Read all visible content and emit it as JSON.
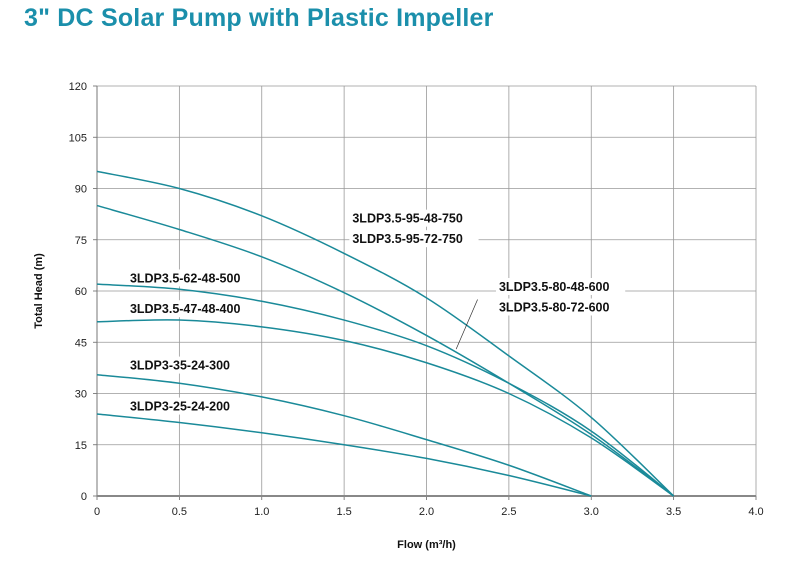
{
  "title": "3\" DC Solar Pump with Plastic Impeller",
  "chart_data": {
    "type": "line",
    "title": "3\" DC Solar Pump with Plastic Impeller",
    "xlabel": "Flow (m³/h)",
    "ylabel": "Total Head (m)",
    "xlim": [
      0,
      4.0
    ],
    "ylim": [
      0,
      120
    ],
    "xticks": [
      "0",
      "0.5",
      "1.0",
      "1.5",
      "2.0",
      "2.5",
      "3.0",
      "3.5",
      "4.0"
    ],
    "yticks": [
      "0",
      "15",
      "30",
      "45",
      "60",
      "75",
      "90",
      "105",
      "120"
    ],
    "grid": true,
    "color": "#1a8a99",
    "series": [
      {
        "name": "3LDP3.5-95-48-750 / 3LDP3.5-95-72-750",
        "x": [
          0,
          0.5,
          1.0,
          1.5,
          2.0,
          2.5,
          3.0,
          3.5
        ],
        "y": [
          95,
          90,
          82,
          71,
          58,
          41,
          23,
          0
        ]
      },
      {
        "name": "3LDP3.5-80-48-600 / 3LDP3.5-80-72-600",
        "x": [
          0,
          0.5,
          1.0,
          1.5,
          2.0,
          2.5,
          3.0,
          3.5
        ],
        "y": [
          85,
          78,
          70,
          59.5,
          47,
          33,
          18,
          0
        ]
      },
      {
        "name": "3LDP3.5-62-48-500",
        "x": [
          0,
          0.5,
          1.0,
          1.5,
          2.0,
          2.5,
          3.0,
          3.5
        ],
        "y": [
          62,
          60.5,
          57,
          51.5,
          44,
          33,
          19,
          0
        ]
      },
      {
        "name": "3LDP3.5-47-48-400",
        "x": [
          0,
          0.5,
          1.0,
          1.5,
          2.0,
          2.5,
          3.0,
          3.5
        ],
        "y": [
          51,
          51.5,
          49.5,
          45.5,
          39,
          30,
          17,
          0
        ]
      },
      {
        "name": "3LDP3-35-24-300",
        "x": [
          0,
          0.5,
          1.0,
          1.5,
          2.0,
          2.5,
          3.0
        ],
        "y": [
          35.5,
          33,
          29,
          23.5,
          16.5,
          9,
          0
        ]
      },
      {
        "name": "3LDP3-25-24-200",
        "x": [
          0,
          0.5,
          1.0,
          1.5,
          2.0,
          2.5,
          3.0
        ],
        "y": [
          24,
          21.5,
          18.5,
          15,
          11,
          6,
          0
        ]
      }
    ],
    "annotations": [
      {
        "text": "3LDP3.5-95-48-750",
        "x": 1.55,
        "y": 80
      },
      {
        "text": "3LDP3.5-95-72-750",
        "x": 1.55,
        "y": 74
      },
      {
        "text": "3LDP3.5-80-48-600",
        "x": 2.44,
        "y": 60
      },
      {
        "text": "3LDP3.5-80-72-600",
        "x": 2.44,
        "y": 54
      },
      {
        "text": "3LDP3.5-62-48-500",
        "x": 0.2,
        "y": 62.5
      },
      {
        "text": "3LDP3.5-47-48-400",
        "x": 0.2,
        "y": 53.5
      },
      {
        "text": "3LDP3-35-24-300",
        "x": 0.2,
        "y": 37
      },
      {
        "text": "3LDP3-25-24-200",
        "x": 0.2,
        "y": 25
      }
    ]
  }
}
